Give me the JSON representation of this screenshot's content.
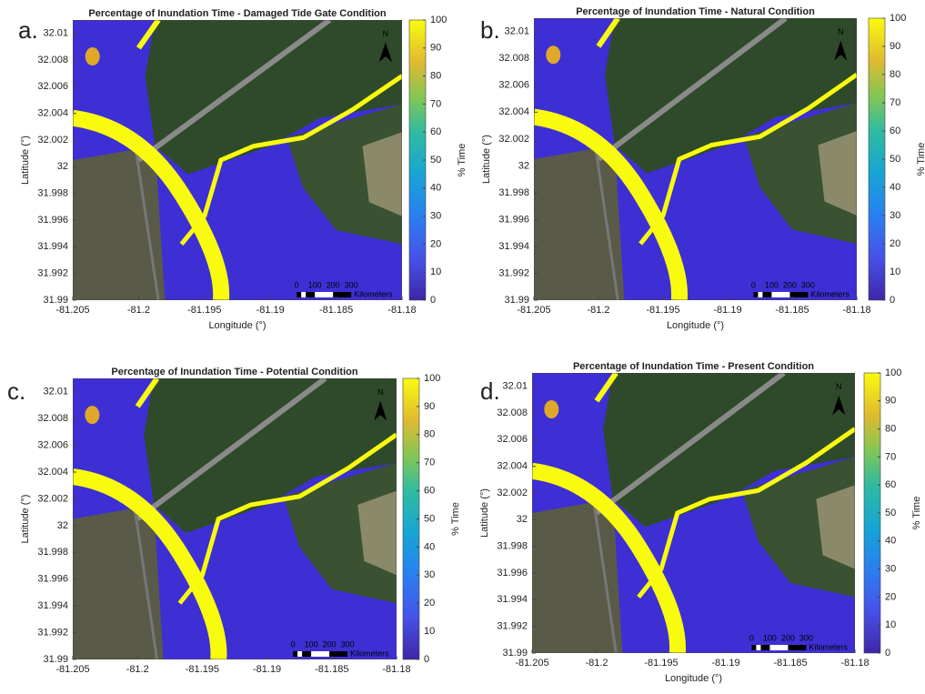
{
  "chart_data": [
    {
      "type": "map",
      "panel_label": "a.",
      "title": "Percentage of Inundation Time - Damaged Tide Gate Condition",
      "xlabel": "Longitude (°)",
      "ylabel": "Latitude (°)",
      "xlim": [
        -81.205,
        -81.18
      ],
      "xticks": [
        -81.205,
        -81.2,
        -81.195,
        -81.19,
        -81.185,
        -81.18
      ],
      "ylim": [
        31.99,
        32.011
      ],
      "yticks": [
        31.99,
        31.992,
        31.994,
        31.996,
        31.998,
        32,
        32.002,
        32.004,
        32.006,
        32.008,
        32.01
      ],
      "clim": [
        0,
        100
      ],
      "cticks": [
        0,
        10,
        20,
        30,
        40,
        50,
        60,
        70,
        80,
        90,
        100
      ],
      "clabel": "% Time",
      "scale_ticks": [
        0,
        100,
        200,
        300
      ],
      "scale_unit": "Kilometers",
      "north": "N"
    },
    {
      "type": "map",
      "panel_label": "b.",
      "title": "Percentage of Inundation Time - Natural Condition",
      "xlabel": "Longitude (°)",
      "ylabel": "Latitude (°)",
      "xlim": [
        -81.205,
        -81.18
      ],
      "xticks": [
        -81.205,
        -81.2,
        -81.195,
        -81.19,
        -81.185,
        -81.18
      ],
      "ylim": [
        31.99,
        32.011
      ],
      "yticks": [
        31.99,
        31.992,
        31.994,
        31.996,
        31.998,
        32,
        32.002,
        32.004,
        32.006,
        32.008,
        32.01
      ],
      "clim": [
        0,
        100
      ],
      "cticks": [
        0,
        10,
        20,
        30,
        40,
        50,
        60,
        70,
        80,
        90,
        100
      ],
      "clabel": "% Time",
      "scale_ticks": [
        0,
        100,
        200,
        300
      ],
      "scale_unit": "Kilometers",
      "north": "N"
    },
    {
      "type": "map",
      "panel_label": "c.",
      "title": "Percentage of Inundation Time - Potential Condition",
      "ylabel": "Latitude (°)",
      "xlim": [
        -81.205,
        -81.18
      ],
      "xticks": [
        -81.205,
        -81.2,
        -81.195,
        -81.19,
        -81.185,
        -81.18
      ],
      "ylim": [
        31.99,
        32.011
      ],
      "yticks": [
        31.99,
        31.992,
        31.994,
        31.996,
        31.998,
        32,
        32.002,
        32.004,
        32.006,
        32.008,
        32.01
      ],
      "clim": [
        0,
        100
      ],
      "cticks": [
        0,
        10,
        20,
        30,
        40,
        50,
        60,
        70,
        80,
        90,
        100
      ],
      "clabel": "% Time",
      "scale_ticks": [
        0,
        100,
        200,
        300
      ],
      "scale_unit": "Kilometers",
      "north": "N"
    },
    {
      "type": "map",
      "panel_label": "d.",
      "title": "Percentage of Inundation Time - Present Condition",
      "xlabel": "Longitude (°)",
      "ylabel": "Latitude (°)",
      "xlim": [
        -81.205,
        -81.18
      ],
      "xticks": [
        -81.205,
        -81.2,
        -81.195,
        -81.19,
        -81.185,
        -81.18
      ],
      "ylim": [
        31.99,
        32.011
      ],
      "yticks": [
        31.99,
        31.992,
        31.994,
        31.996,
        31.998,
        32,
        32.002,
        32.004,
        32.006,
        32.008,
        32.01
      ],
      "clim": [
        0,
        100
      ],
      "cticks": [
        0,
        10,
        20,
        30,
        40,
        50,
        60,
        70,
        80,
        90,
        100
      ],
      "clabel": "% Time",
      "scale_ticks": [
        0,
        100,
        200,
        300
      ],
      "scale_unit": "Kilometers",
      "north": "N"
    }
  ]
}
